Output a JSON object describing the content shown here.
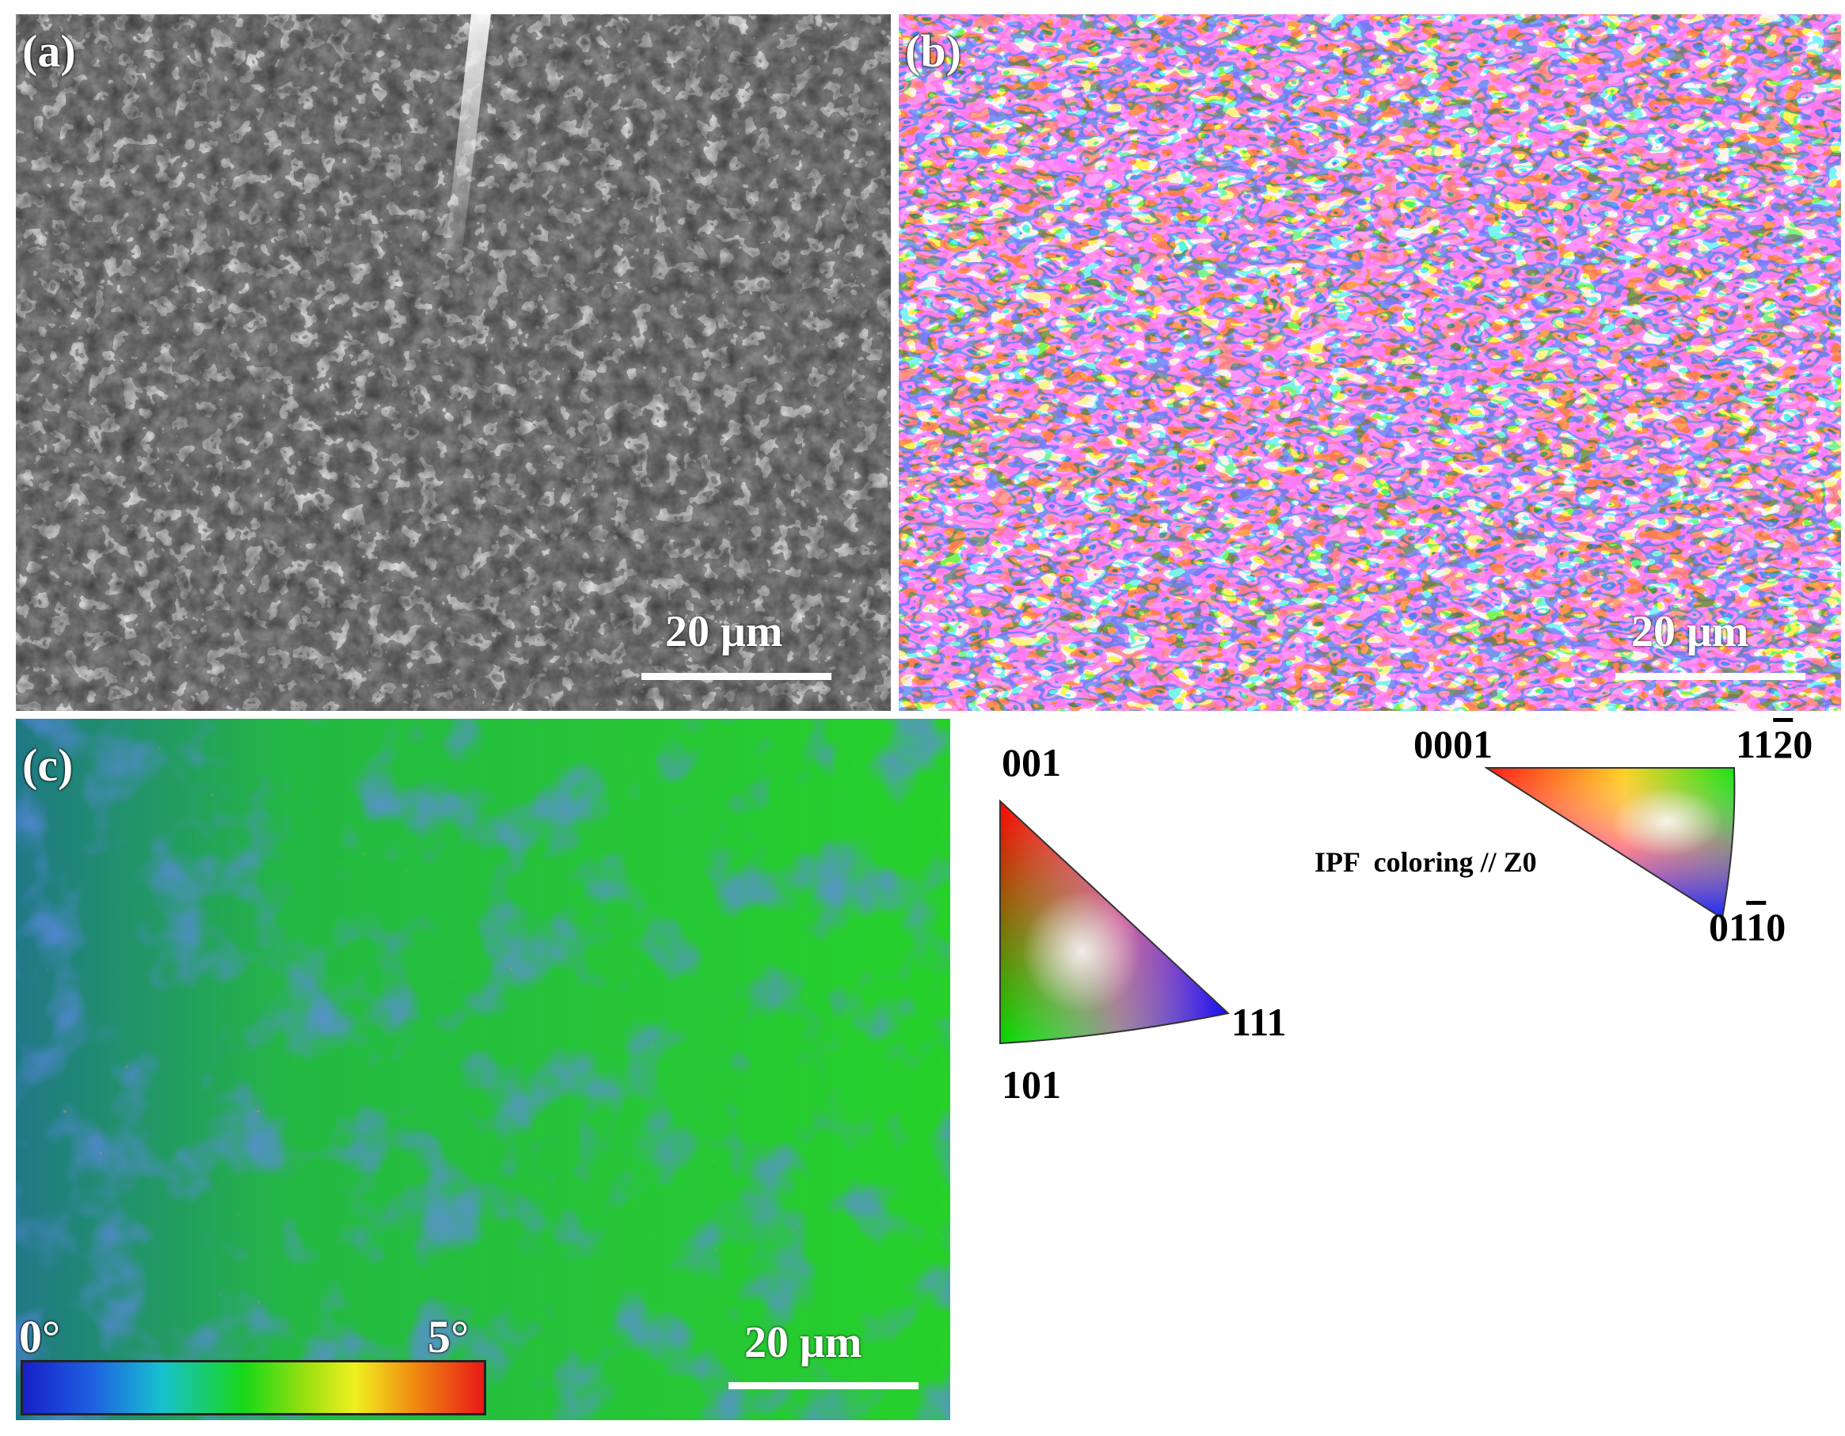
{
  "panels": {
    "a": {
      "label": "(a)",
      "scale_bar": "20 μm"
    },
    "b": {
      "label": "(b)",
      "scale_bar": "20 μm"
    },
    "c": {
      "label": "(c)",
      "scale_bar": "20 μm",
      "colorbar": {
        "min_label": "0°",
        "max_label": "5°"
      }
    }
  },
  "cubic_legend": {
    "corner_top": "001",
    "corner_right": "111",
    "corner_bottom": "101"
  },
  "hex_legend": {
    "corner_left": "0001",
    "corner_right_prefix": "11",
    "corner_right_bar": "2",
    "corner_right_suffix": "0",
    "corner_bottom_prefix": "01",
    "corner_bottom_bar": "1",
    "corner_bottom_suffix": "0",
    "caption": "IPF  coloring // Z0"
  },
  "colors": {
    "sem_bg": "#3a3a3a",
    "kam_low": "#1a2fd0",
    "kam_mid": "#1fd21f",
    "kam_high": "#e8201a"
  }
}
